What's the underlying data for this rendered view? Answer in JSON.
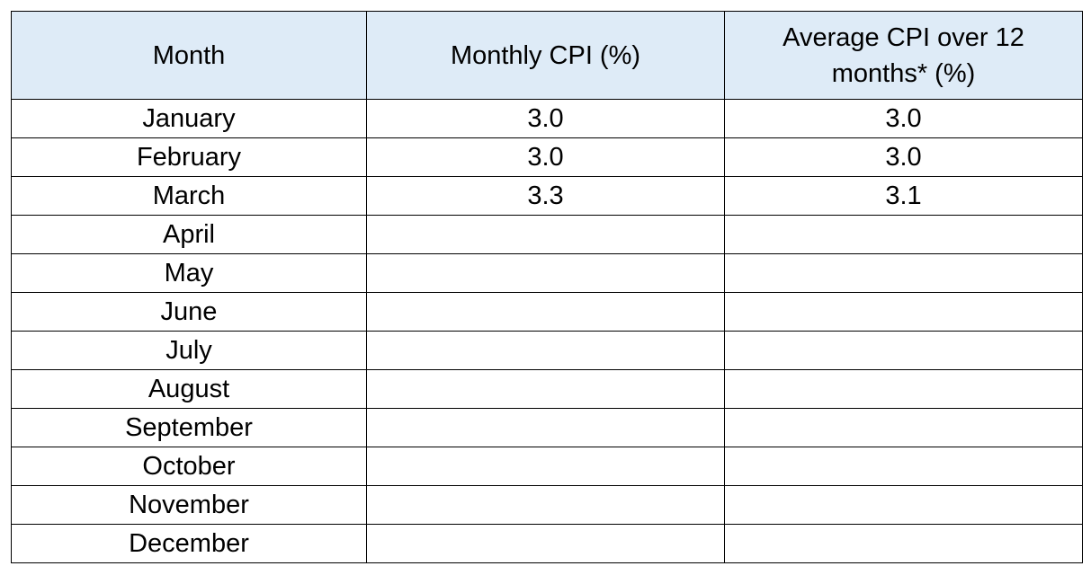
{
  "table": {
    "header": [
      "Month",
      "Monthly CPI (%)",
      "Average CPI over 12 months* (%)"
    ],
    "rows": [
      [
        "January",
        "3.0",
        "3.0"
      ],
      [
        "February",
        "3.0",
        "3.0"
      ],
      [
        "March",
        "3.3",
        "3.1"
      ],
      [
        "April"
      ],
      [
        "May"
      ],
      [
        "June"
      ],
      [
        "July"
      ],
      [
        "August"
      ],
      [
        "September"
      ],
      [
        "October"
      ],
      [
        "November"
      ],
      [
        "December"
      ]
    ]
  }
}
